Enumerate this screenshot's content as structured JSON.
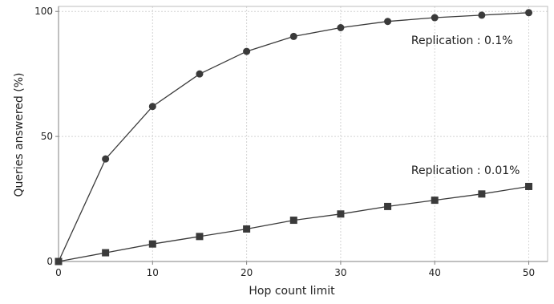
{
  "chart_data": {
    "type": "line",
    "title": "",
    "xlabel": "Hop count limit",
    "ylabel": "Queries answered (%)",
    "xlim": [
      0,
      52
    ],
    "ylim": [
      0,
      102
    ],
    "x_ticks": [
      0,
      10,
      20,
      30,
      40,
      50
    ],
    "y_ticks": [
      0,
      50,
      100
    ],
    "grid": true,
    "x": [
      0,
      5,
      10,
      15,
      20,
      25,
      30,
      35,
      40,
      45,
      50
    ],
    "series": [
      {
        "values": [
          0,
          41,
          62,
          75,
          84,
          90,
          93.5,
          96,
          97.5,
          98.5,
          99.5
        ],
        "marker": "circle",
        "color": "#3a3a3a"
      },
      {
        "values": [
          0,
          3.5,
          7,
          10,
          13,
          16.5,
          19,
          22,
          24.5,
          27,
          30
        ],
        "marker": "square",
        "color": "#3a3a3a"
      }
    ],
    "annotations": [
      {
        "text": "Replication : 0.1%",
        "x": 37.5,
        "y": 87
      },
      {
        "text": "Replication : 0.01%",
        "x": 37.5,
        "y": 35
      }
    ]
  }
}
